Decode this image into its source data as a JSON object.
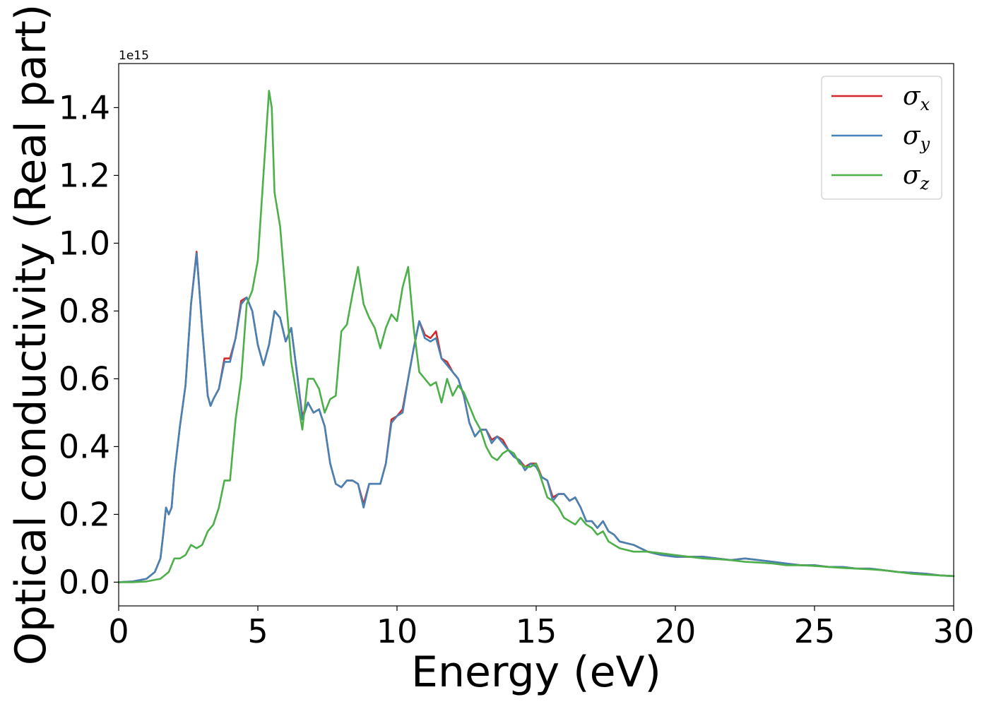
{
  "chart_data": {
    "type": "line",
    "xlabel": "Energy (eV)",
    "ylabel": "Optical conductivity (Real part)",
    "y_offset_label": "1e15",
    "xlim": [
      0,
      30
    ],
    "ylim": [
      -0.07,
      1.53
    ],
    "x_ticks": [
      0,
      5,
      10,
      15,
      20,
      25,
      30
    ],
    "x_tick_labels": [
      "0",
      "5",
      "10",
      "15",
      "20",
      "25",
      "30"
    ],
    "y_ticks": [
      0.0,
      0.2,
      0.4,
      0.6,
      0.8,
      1.0,
      1.2,
      1.4
    ],
    "y_tick_labels": [
      "0.0",
      "0.2",
      "0.4",
      "0.6",
      "0.8",
      "1.0",
      "1.2",
      "1.4"
    ],
    "grid": false,
    "legend_position": "top-right",
    "series": [
      {
        "name": "σx",
        "legend_symbol": "σ",
        "legend_subscript": "x",
        "color": "#d62728",
        "x": [
          0,
          0.5,
          1.0,
          1.3,
          1.5,
          1.6,
          1.7,
          1.8,
          1.9,
          2.0,
          2.2,
          2.4,
          2.6,
          2.8,
          3.0,
          3.2,
          3.3,
          3.4,
          3.6,
          3.8,
          4.0,
          4.2,
          4.4,
          4.6,
          4.8,
          5.0,
          5.2,
          5.4,
          5.6,
          5.8,
          6.0,
          6.2,
          6.4,
          6.6,
          6.8,
          7.0,
          7.2,
          7.4,
          7.6,
          7.8,
          8.0,
          8.2,
          8.4,
          8.6,
          8.8,
          9.0,
          9.2,
          9.4,
          9.6,
          9.8,
          10.0,
          10.2,
          10.4,
          10.6,
          10.8,
          11.0,
          11.2,
          11.4,
          11.6,
          11.8,
          12.0,
          12.2,
          12.4,
          12.6,
          12.8,
          13.0,
          13.2,
          13.4,
          13.6,
          13.8,
          14.0,
          14.2,
          14.4,
          14.6,
          14.8,
          15.0,
          15.2,
          15.4,
          15.6,
          15.8,
          16.0,
          16.2,
          16.4,
          16.6,
          16.8,
          17.0,
          17.2,
          17.4,
          17.6,
          17.8,
          18.0,
          18.5,
          19.0,
          19.5,
          20.0,
          20.5,
          21.0,
          21.5,
          22.0,
          22.5,
          23.0,
          23.5,
          24.0,
          24.5,
          25.0,
          25.5,
          26.0,
          26.5,
          27.0,
          27.5,
          28.0,
          28.5,
          29.0,
          29.5,
          30.0
        ],
        "y": [
          0.0,
          0.002,
          0.01,
          0.03,
          0.07,
          0.14,
          0.22,
          0.2,
          0.22,
          0.32,
          0.46,
          0.58,
          0.82,
          0.975,
          0.75,
          0.55,
          0.52,
          0.54,
          0.57,
          0.66,
          0.66,
          0.72,
          0.83,
          0.84,
          0.8,
          0.7,
          0.64,
          0.7,
          0.8,
          0.78,
          0.71,
          0.75,
          0.62,
          0.49,
          0.53,
          0.5,
          0.51,
          0.46,
          0.35,
          0.29,
          0.28,
          0.3,
          0.3,
          0.29,
          0.23,
          0.29,
          0.29,
          0.29,
          0.35,
          0.48,
          0.49,
          0.51,
          0.6,
          0.69,
          0.77,
          0.73,
          0.72,
          0.74,
          0.66,
          0.65,
          0.62,
          0.6,
          0.55,
          0.47,
          0.43,
          0.45,
          0.45,
          0.42,
          0.43,
          0.42,
          0.39,
          0.37,
          0.36,
          0.34,
          0.35,
          0.35,
          0.31,
          0.3,
          0.25,
          0.26,
          0.26,
          0.24,
          0.25,
          0.22,
          0.18,
          0.18,
          0.16,
          0.18,
          0.15,
          0.14,
          0.12,
          0.11,
          0.09,
          0.08,
          0.075,
          0.075,
          0.075,
          0.07,
          0.065,
          0.07,
          0.065,
          0.06,
          0.055,
          0.05,
          0.05,
          0.045,
          0.045,
          0.04,
          0.04,
          0.035,
          0.03,
          0.028,
          0.025,
          0.02,
          0.018
        ]
      },
      {
        "name": "σy",
        "legend_symbol": "σ",
        "legend_subscript": "y",
        "color": "#4682b4",
        "x": [
          0,
          0.5,
          1.0,
          1.3,
          1.5,
          1.6,
          1.7,
          1.8,
          1.9,
          2.0,
          2.2,
          2.4,
          2.6,
          2.8,
          3.0,
          3.2,
          3.3,
          3.4,
          3.6,
          3.8,
          4.0,
          4.2,
          4.4,
          4.6,
          4.8,
          5.0,
          5.2,
          5.4,
          5.6,
          5.8,
          6.0,
          6.2,
          6.4,
          6.6,
          6.8,
          7.0,
          7.2,
          7.4,
          7.6,
          7.8,
          8.0,
          8.2,
          8.4,
          8.6,
          8.8,
          9.0,
          9.2,
          9.4,
          9.6,
          9.8,
          10.0,
          10.2,
          10.4,
          10.6,
          10.8,
          11.0,
          11.2,
          11.4,
          11.6,
          11.8,
          12.0,
          12.2,
          12.4,
          12.6,
          12.8,
          13.0,
          13.2,
          13.4,
          13.6,
          13.8,
          14.0,
          14.2,
          14.4,
          14.6,
          14.8,
          15.0,
          15.2,
          15.4,
          15.6,
          15.8,
          16.0,
          16.2,
          16.4,
          16.6,
          16.8,
          17.0,
          17.2,
          17.4,
          17.6,
          17.8,
          18.0,
          18.5,
          19.0,
          19.5,
          20.0,
          20.5,
          21.0,
          21.5,
          22.0,
          22.5,
          23.0,
          23.5,
          24.0,
          24.5,
          25.0,
          25.5,
          26.0,
          26.5,
          27.0,
          27.5,
          28.0,
          28.5,
          29.0,
          29.5,
          30.0
        ],
        "y": [
          0.0,
          0.002,
          0.01,
          0.03,
          0.07,
          0.14,
          0.22,
          0.2,
          0.22,
          0.32,
          0.46,
          0.58,
          0.82,
          0.97,
          0.75,
          0.55,
          0.52,
          0.54,
          0.57,
          0.65,
          0.65,
          0.72,
          0.82,
          0.84,
          0.8,
          0.7,
          0.64,
          0.7,
          0.8,
          0.78,
          0.71,
          0.75,
          0.62,
          0.48,
          0.53,
          0.5,
          0.51,
          0.46,
          0.35,
          0.29,
          0.28,
          0.3,
          0.3,
          0.29,
          0.22,
          0.29,
          0.29,
          0.29,
          0.35,
          0.47,
          0.49,
          0.5,
          0.6,
          0.69,
          0.77,
          0.72,
          0.71,
          0.72,
          0.66,
          0.64,
          0.62,
          0.6,
          0.55,
          0.47,
          0.43,
          0.45,
          0.45,
          0.41,
          0.43,
          0.41,
          0.39,
          0.37,
          0.36,
          0.33,
          0.35,
          0.34,
          0.31,
          0.3,
          0.24,
          0.26,
          0.26,
          0.24,
          0.25,
          0.22,
          0.18,
          0.18,
          0.16,
          0.18,
          0.15,
          0.14,
          0.12,
          0.11,
          0.09,
          0.08,
          0.075,
          0.075,
          0.075,
          0.07,
          0.065,
          0.07,
          0.065,
          0.06,
          0.055,
          0.05,
          0.05,
          0.045,
          0.045,
          0.04,
          0.04,
          0.035,
          0.03,
          0.028,
          0.025,
          0.02,
          0.018
        ]
      },
      {
        "name": "σz",
        "legend_symbol": "σ",
        "legend_subscript": "z",
        "color": "#4daf4a",
        "x": [
          0,
          0.5,
          1.0,
          1.5,
          1.8,
          2.0,
          2.2,
          2.4,
          2.6,
          2.8,
          3.0,
          3.2,
          3.4,
          3.6,
          3.8,
          4.0,
          4.2,
          4.4,
          4.6,
          4.8,
          5.0,
          5.2,
          5.4,
          5.5,
          5.6,
          5.8,
          6.0,
          6.2,
          6.4,
          6.6,
          6.8,
          7.0,
          7.2,
          7.4,
          7.6,
          7.8,
          8.0,
          8.2,
          8.4,
          8.6,
          8.8,
          9.0,
          9.2,
          9.4,
          9.6,
          9.8,
          10.0,
          10.2,
          10.4,
          10.6,
          10.8,
          11.0,
          11.2,
          11.4,
          11.6,
          11.8,
          12.0,
          12.2,
          12.4,
          12.6,
          12.8,
          13.0,
          13.2,
          13.4,
          13.6,
          13.8,
          14.0,
          14.2,
          14.4,
          14.6,
          14.8,
          15.0,
          15.2,
          15.4,
          15.6,
          15.8,
          16.0,
          16.2,
          16.4,
          16.6,
          16.8,
          17.0,
          17.2,
          17.4,
          17.6,
          17.8,
          18.0,
          18.5,
          19.0,
          19.5,
          20.0,
          20.5,
          21.0,
          21.5,
          22.0,
          22.5,
          23.0,
          23.5,
          24.0,
          24.5,
          25.0,
          25.5,
          26.0,
          26.5,
          27.0,
          27.5,
          28.0,
          28.5,
          29.0,
          29.5,
          30.0
        ],
        "y": [
          0.0,
          0.0,
          0.002,
          0.01,
          0.03,
          0.07,
          0.07,
          0.08,
          0.11,
          0.1,
          0.11,
          0.15,
          0.17,
          0.22,
          0.3,
          0.3,
          0.48,
          0.6,
          0.82,
          0.86,
          0.95,
          1.2,
          1.45,
          1.4,
          1.15,
          1.05,
          0.85,
          0.65,
          0.55,
          0.45,
          0.6,
          0.6,
          0.57,
          0.5,
          0.54,
          0.55,
          0.74,
          0.76,
          0.85,
          0.93,
          0.82,
          0.78,
          0.75,
          0.69,
          0.75,
          0.79,
          0.77,
          0.87,
          0.93,
          0.75,
          0.62,
          0.6,
          0.58,
          0.59,
          0.53,
          0.6,
          0.55,
          0.58,
          0.56,
          0.52,
          0.48,
          0.45,
          0.4,
          0.37,
          0.36,
          0.38,
          0.39,
          0.38,
          0.35,
          0.34,
          0.34,
          0.35,
          0.3,
          0.25,
          0.24,
          0.22,
          0.19,
          0.18,
          0.17,
          0.19,
          0.17,
          0.16,
          0.14,
          0.15,
          0.12,
          0.11,
          0.1,
          0.09,
          0.09,
          0.085,
          0.08,
          0.075,
          0.07,
          0.068,
          0.065,
          0.06,
          0.058,
          0.055,
          0.05,
          0.05,
          0.048,
          0.045,
          0.042,
          0.04,
          0.038,
          0.035,
          0.03,
          0.025,
          0.022,
          0.02,
          0.018
        ]
      }
    ]
  }
}
